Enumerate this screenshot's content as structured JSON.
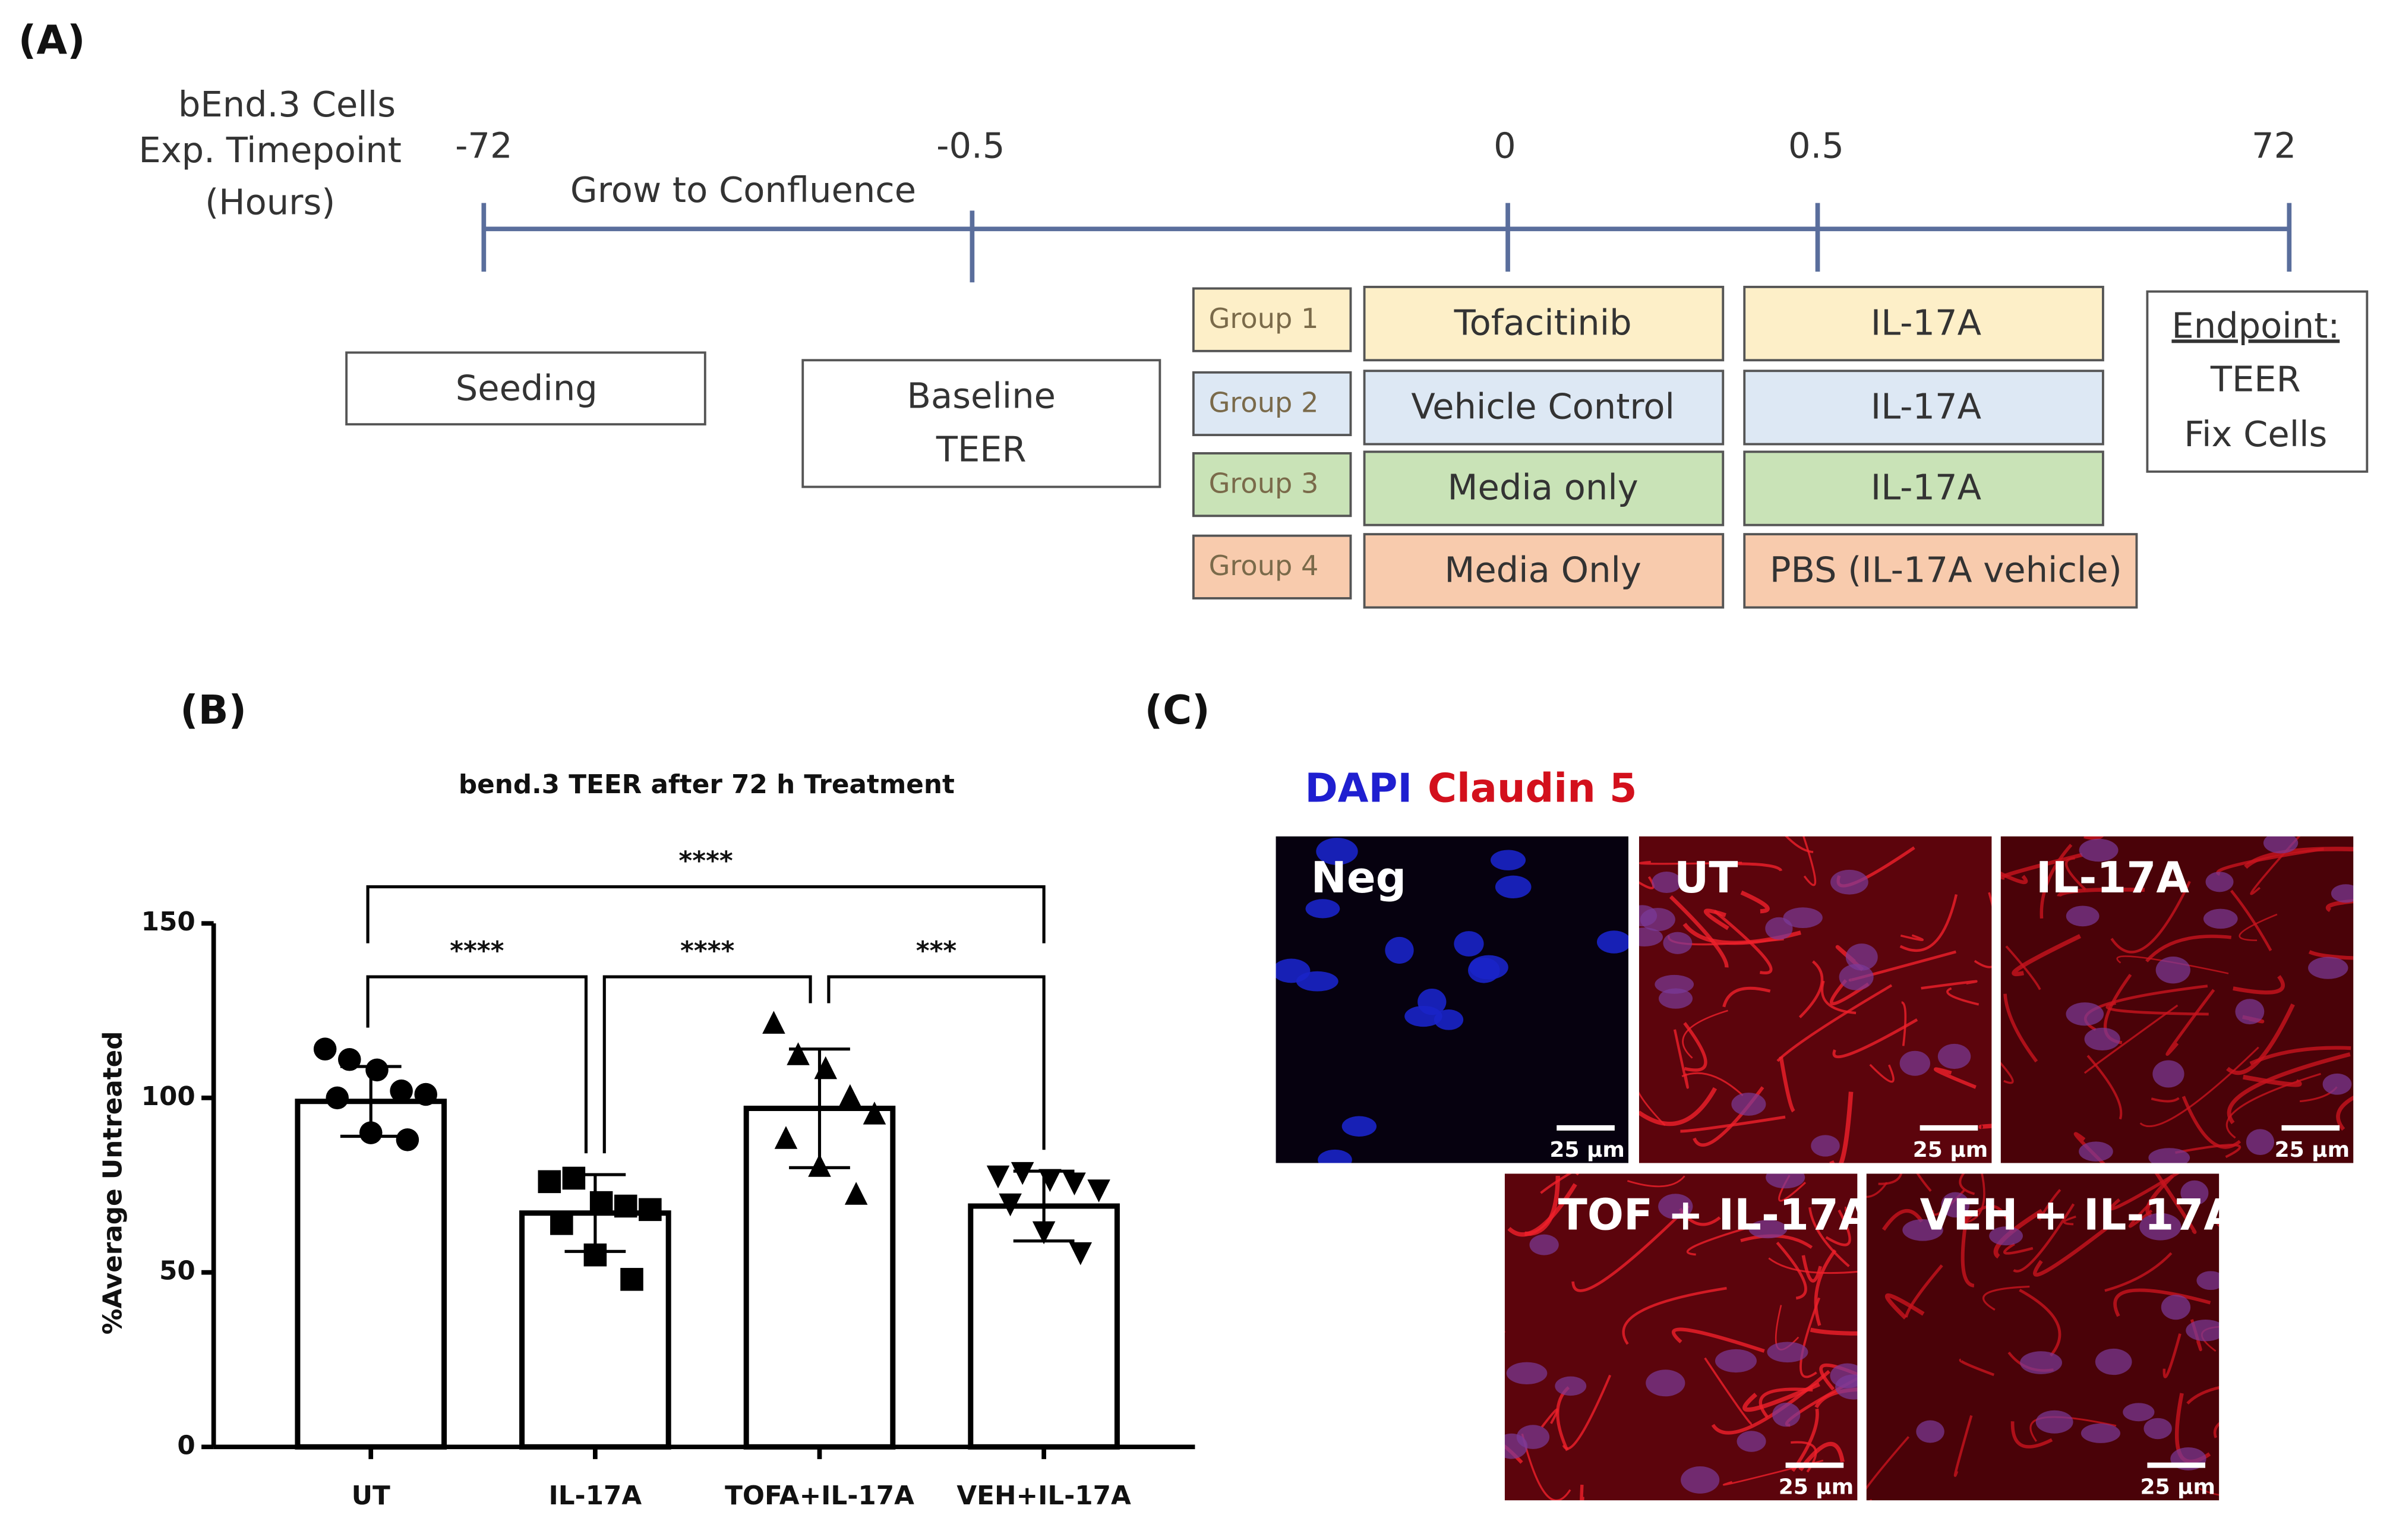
{
  "panel_a": {
    "label": "(A)",
    "timeline_caption": [
      "bEnd.3 Cells",
      "Exp. Timepoint",
      "(Hours)"
    ],
    "timepoints": [
      "-72",
      "-0.5",
      "0",
      "0.5",
      "72"
    ],
    "phase": "Grow to Confluence",
    "seeding": "Seeding",
    "baseline": [
      "Baseline",
      "TEER"
    ],
    "groups": [
      {
        "name": "Group 1",
        "pretreatment": "Tofacitinib",
        "treatment": "IL-17A",
        "color": "#fdefc8"
      },
      {
        "name": "Group 2",
        "pretreatment": "Vehicle Control",
        "treatment": "IL-17A",
        "color": "#dde8f4"
      },
      {
        "name": "Group 3",
        "pretreatment": "Media only",
        "treatment": "IL-17A",
        "color": "#c9e3b7"
      },
      {
        "name": "Group 4",
        "pretreatment": "Media Only",
        "treatment": "PBS (IL-17A vehicle)",
        "color": "#f8cbad"
      }
    ],
    "endpoint": [
      "Endpoint:",
      "TEER",
      "Fix Cells"
    ]
  },
  "panel_b_label": "(B)",
  "chart_data": {
    "type": "bar",
    "title": "bend.3 TEER after 72 h Treatment",
    "y_label": "%Average Untreated",
    "categories": [
      "UT",
      "IL-17A",
      "TOFA+IL-17A",
      "VEH+IL-17A"
    ],
    "values": [
      99,
      67,
      97,
      69
    ],
    "errors": [
      10,
      11,
      17,
      10
    ],
    "points": [
      [
        114,
        111,
        108,
        102,
        101,
        100,
        90,
        88
      ],
      [
        76,
        77,
        70,
        69,
        68,
        64,
        55,
        48
      ],
      [
        121,
        112,
        108,
        100,
        95,
        88,
        80,
        72
      ],
      [
        78,
        79,
        77,
        76,
        74,
        70,
        62,
        56
      ]
    ],
    "markers": [
      "circle",
      "square",
      "triangle",
      "triangle-down"
    ],
    "color": "#000000",
    "ylim": [
      0,
      150
    ],
    "yticks": [
      0,
      50,
      100,
      150
    ],
    "brackets": [
      {
        "from": 0,
        "to": 3,
        "label": "****"
      },
      {
        "from": 0,
        "to": 1,
        "label": "****"
      },
      {
        "from": 1,
        "to": 2,
        "label": "****"
      },
      {
        "from": 2,
        "to": 3,
        "label": "***"
      }
    ]
  },
  "panel_c": {
    "label": "(C)",
    "stains": [
      {
        "name": "DAPI",
        "color": "#1f1fd0"
      },
      {
        "name": "Claudin 5",
        "color": "#d3101c"
      }
    ],
    "images": [
      "Neg",
      "UT",
      "IL-17A",
      "TOF + IL-17A",
      "VEH + IL-17A"
    ],
    "scale_bar": "25 µm"
  }
}
